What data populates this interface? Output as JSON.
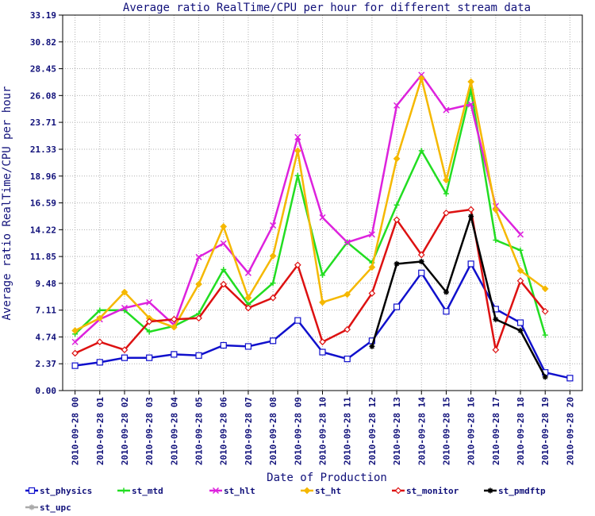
{
  "chart_data": {
    "type": "line",
    "title": "Average ratio RealTime/CPU per hour for different stream data",
    "xlabel": "Date of Production",
    "ylabel": "Average ratio RealTime/CPU per hour",
    "ylim": [
      0,
      33.19
    ],
    "yticks": [
      "0.00",
      "2.37",
      "4.74",
      "7.11",
      "9.48",
      "11.85",
      "14.22",
      "16.59",
      "18.96",
      "21.33",
      "23.71",
      "26.08",
      "28.45",
      "30.82",
      "33.19"
    ],
    "categories": [
      "2010-09-28 00",
      "2010-09-28 01",
      "2010-09-28 02",
      "2010-09-28 03",
      "2010-09-28 04",
      "2010-09-28 05",
      "2010-09-28 06",
      "2010-09-28 07",
      "2010-09-28 08",
      "2010-09-28 09",
      "2010-09-28 10",
      "2010-09-28 11",
      "2010-09-28 12",
      "2010-09-28 13",
      "2010-09-28 14",
      "2010-09-28 15",
      "2010-09-28 16",
      "2010-09-28 17",
      "2010-09-28 18",
      "2010-09-28 19",
      "2010-09-28 20"
    ],
    "grid": true,
    "legend_position": "bottom",
    "series": [
      {
        "name": "st_physics",
        "color": "#1010cc",
        "marker": "square",
        "values": [
          2.2,
          2.5,
          2.9,
          2.9,
          3.2,
          3.1,
          4.0,
          3.9,
          4.4,
          6.2,
          3.4,
          2.8,
          4.4,
          7.4,
          10.4,
          7.0,
          11.2,
          7.2,
          6.0,
          1.6,
          1.1
        ]
      },
      {
        "name": "st_mtd",
        "color": "#22dd22",
        "marker": "plus",
        "values": [
          5.0,
          7.1,
          7.1,
          5.2,
          5.7,
          6.8,
          10.7,
          7.6,
          9.5,
          19.0,
          10.2,
          13.1,
          11.3,
          16.4,
          21.2,
          17.4,
          26.6,
          13.3,
          12.4,
          4.9,
          null
        ]
      },
      {
        "name": "st_hlt",
        "color": "#dd22dd",
        "marker": "x",
        "values": [
          4.3,
          6.3,
          7.3,
          7.8,
          5.8,
          11.8,
          13.0,
          10.4,
          14.6,
          22.4,
          15.3,
          13.1,
          13.8,
          25.2,
          27.9,
          24.8,
          25.3,
          16.3,
          13.8,
          null,
          null
        ]
      },
      {
        "name": "st_ht",
        "color": "#f5b800",
        "marker": "diamond",
        "values": [
          5.3,
          6.4,
          8.7,
          6.4,
          5.6,
          9.4,
          14.5,
          8.2,
          11.9,
          21.2,
          7.8,
          8.5,
          10.9,
          20.5,
          27.6,
          18.6,
          27.3,
          16.0,
          10.6,
          9.0,
          null
        ]
      },
      {
        "name": "st_monitor",
        "color": "#dd1111",
        "marker": "diamond-open",
        "values": [
          3.3,
          4.3,
          3.6,
          6.1,
          6.3,
          6.4,
          9.4,
          7.3,
          8.2,
          11.1,
          4.3,
          5.4,
          8.6,
          15.1,
          12.0,
          15.7,
          16.0,
          3.6,
          9.7,
          7.0,
          null
        ]
      },
      {
        "name": "st_pmdftp",
        "color": "#000000",
        "marker": "star",
        "values": [
          null,
          null,
          null,
          null,
          null,
          null,
          null,
          null,
          null,
          null,
          null,
          null,
          3.9,
          11.2,
          11.4,
          8.7,
          15.4,
          6.3,
          5.3,
          1.2,
          null
        ]
      },
      {
        "name": "st_upc",
        "color": "#aaaaaa",
        "marker": "star",
        "values": [
          null,
          null,
          null,
          null,
          null,
          null,
          null,
          null,
          null,
          null,
          null,
          null,
          null,
          null,
          null,
          null,
          null,
          null,
          null,
          null,
          null
        ]
      }
    ]
  }
}
